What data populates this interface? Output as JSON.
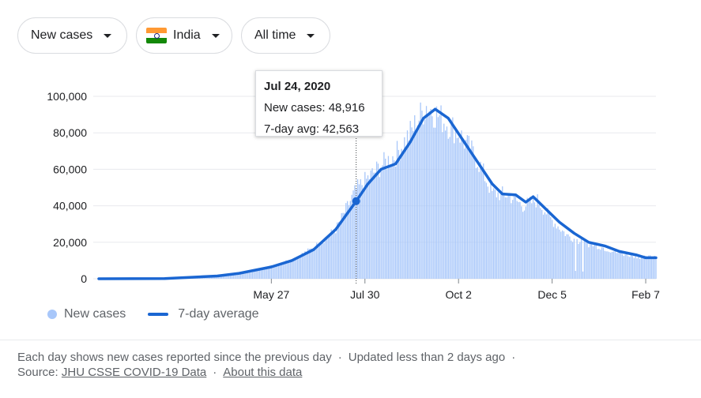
{
  "filters": {
    "metric": "New cases",
    "region": "India",
    "range": "All time"
  },
  "flag_colors": {
    "saffron": "#ff9933",
    "white": "#ffffff",
    "green": "#138808"
  },
  "tooltip": {
    "date": "Jul 24, 2020",
    "new_cases_label": "New cases: 48,916",
    "avg_label": "7-day avg: 42,563"
  },
  "legend": {
    "bars_label": "New cases",
    "line_label": "7-day average"
  },
  "footer": {
    "note": "Each day shows new cases reported since the previous day",
    "updated": "Updated less than 2 days ago",
    "source_prefix": "Source:",
    "source_link": "JHU CSSE COVID-19 Data",
    "about_link": "About this data"
  },
  "colors": {
    "bar": "#a8c7fa",
    "line": "#1a66d2",
    "grid": "#e8eaed"
  },
  "chart_data": {
    "type": "bar",
    "y_ticks": [
      "100,000",
      "80,000",
      "60,000",
      "40,000",
      "20,000",
      "0"
    ],
    "y_tick_values": [
      100000,
      80000,
      60000,
      40000,
      20000,
      0
    ],
    "ylim": [
      0,
      100000
    ],
    "x_tick_labels": [
      "May 27",
      "Jul 30",
      "Oct 2",
      "Dec 5",
      "Feb 7"
    ],
    "x_tick_dates": [
      "2020-05-27",
      "2020-07-30",
      "2020-10-02",
      "2020-12-05",
      "2021-02-07"
    ],
    "x_range": [
      "2020-01-30",
      "2021-02-14"
    ],
    "series": [
      {
        "name": "New cases",
        "kind": "bars",
        "approx_points": [
          [
            "2020-01-30",
            0
          ],
          [
            "2020-03-15",
            100
          ],
          [
            "2020-04-15",
            1200
          ],
          [
            "2020-05-01",
            2000
          ],
          [
            "2020-05-15",
            4000
          ],
          [
            "2020-05-27",
            7000
          ],
          [
            "2020-06-10",
            10500
          ],
          [
            "2020-06-25",
            17000
          ],
          [
            "2020-07-10",
            27000
          ],
          [
            "2020-07-24",
            48916
          ],
          [
            "2020-08-01",
            55000
          ],
          [
            "2020-08-10",
            62000
          ],
          [
            "2020-08-20",
            68000
          ],
          [
            "2020-08-30",
            80000
          ],
          [
            "2020-09-10",
            95000
          ],
          [
            "2020-09-20",
            88000
          ],
          [
            "2020-10-02",
            80000
          ],
          [
            "2020-10-15",
            65000
          ],
          [
            "2020-10-25",
            47000
          ],
          [
            "2020-11-05",
            46000
          ],
          [
            "2020-11-15",
            40000
          ],
          [
            "2020-11-25",
            43000
          ],
          [
            "2020-12-05",
            32000
          ],
          [
            "2020-12-15",
            24000
          ],
          [
            "2020-12-25",
            20000
          ],
          [
            "2021-01-05",
            18000
          ],
          [
            "2021-01-20",
            14000
          ],
          [
            "2021-02-07",
            11500
          ],
          [
            "2021-02-14",
            12500
          ]
        ]
      },
      {
        "name": "7-day average",
        "kind": "line",
        "approx_points": [
          [
            "2020-01-30",
            0
          ],
          [
            "2020-03-15",
            100
          ],
          [
            "2020-04-01",
            800
          ],
          [
            "2020-04-20",
            1500
          ],
          [
            "2020-05-05",
            3000
          ],
          [
            "2020-05-27",
            6500
          ],
          [
            "2020-06-10",
            10000
          ],
          [
            "2020-06-25",
            16000
          ],
          [
            "2020-07-10",
            27000
          ],
          [
            "2020-07-24",
            42563
          ],
          [
            "2020-08-01",
            52000
          ],
          [
            "2020-08-10",
            60000
          ],
          [
            "2020-08-20",
            63000
          ],
          [
            "2020-08-30",
            75000
          ],
          [
            "2020-09-08",
            88000
          ],
          [
            "2020-09-16",
            93000
          ],
          [
            "2020-09-25",
            88000
          ],
          [
            "2020-10-05",
            76000
          ],
          [
            "2020-10-15",
            64000
          ],
          [
            "2020-10-25",
            52000
          ],
          [
            "2020-11-01",
            46500
          ],
          [
            "2020-11-10",
            46000
          ],
          [
            "2020-11-17",
            42000
          ],
          [
            "2020-11-22",
            45000
          ],
          [
            "2020-12-01",
            38000
          ],
          [
            "2020-12-10",
            31000
          ],
          [
            "2020-12-20",
            25000
          ],
          [
            "2020-12-30",
            20000
          ],
          [
            "2021-01-10",
            18000
          ],
          [
            "2021-01-20",
            15000
          ],
          [
            "2021-02-01",
            13000
          ],
          [
            "2021-02-07",
            11500
          ],
          [
            "2021-02-14",
            11500
          ]
        ]
      }
    ],
    "selected": {
      "date": "2020-07-24",
      "new_cases": 48916,
      "avg": 42563
    },
    "legend_position": "bottom-left",
    "grid": true
  }
}
